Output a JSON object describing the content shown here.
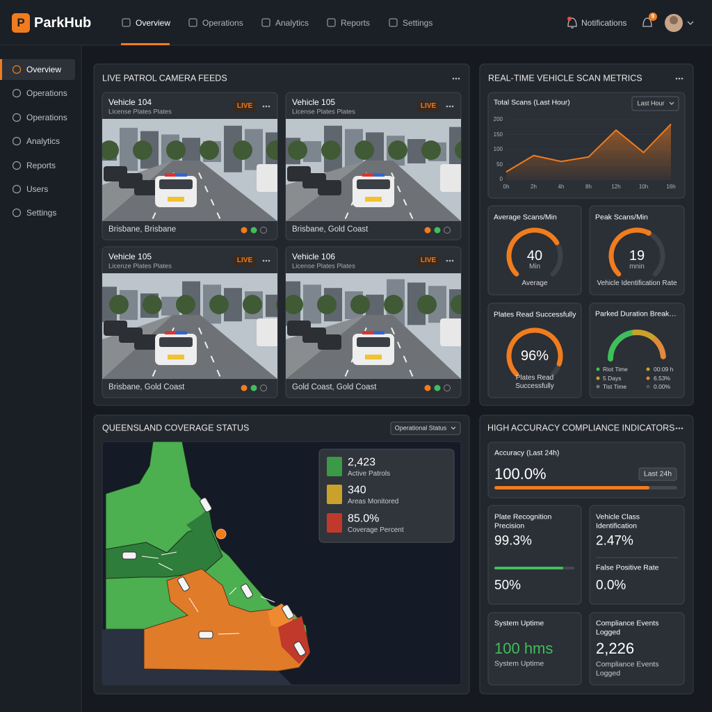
{
  "header": {
    "logo_letter": "P",
    "logo": "ParkHub",
    "nav": [
      "Overview",
      "Operations",
      "Analytics",
      "Reports",
      "Settings"
    ],
    "notifications": "Notifications",
    "badge": "9"
  },
  "sidebar": [
    "Overview",
    "Operations",
    "Operations",
    "Analytics",
    "Reports",
    "Users",
    "Settings"
  ],
  "camera_panel": {
    "title": "LIVE PATROL CAMERA FEEDS",
    "feeds": [
      {
        "vehicle": "Vehicle 104",
        "subtitle": "License Plates Plates",
        "status": "LIVE",
        "location": "Brisbane, Brisbane"
      },
      {
        "vehicle": "Vehicle 105",
        "subtitle": "License Plates Plates",
        "status": "LIVE",
        "location": "Brisbane, Gold Coast"
      },
      {
        "vehicle": "Vehicle 105",
        "subtitle": "Licenze Plates Plates",
        "status": "LIVE",
        "location": "Brisbane, Gold Coast"
      },
      {
        "vehicle": "Vehicle 106",
        "subtitle": "License Plates Plates",
        "status": "LIVE",
        "location": "Gold Coast, Gold Coast"
      }
    ]
  },
  "metrics_panel": {
    "title": "REAL-TIME VEHICLE SCAN METRICS",
    "gauges": [
      {
        "title": "Average Scans/Min",
        "value": "40",
        "unit": "Min",
        "caption": "Average"
      },
      {
        "title": "Peak Scans/Min",
        "value": "19",
        "unit": "mnin",
        "caption": "Vehicle Identification Rate"
      },
      {
        "title": "Plates Read Successfully",
        "value": "96%",
        "caption": "Plates Read Successfully"
      }
    ],
    "duration": {
      "title": "Parked Duration Breakdown",
      "legend": [
        {
          "label": "Riot Time",
          "value": "00:09 h"
        },
        {
          "label": "5 Days",
          "value": "6.53%"
        },
        {
          "label": "Tist Time",
          "value": "0.00%"
        },
        {
          "label": "",
          "value": ""
        }
      ]
    }
  },
  "chart_data": {
    "type": "line",
    "title": "Total Scans (Last Hour)",
    "filter": "Last Hour",
    "categories": [
      "0h",
      "2h",
      "4h",
      "8h",
      "12h",
      "10h",
      "16h"
    ],
    "values": [
      25,
      80,
      60,
      75,
      165,
      90,
      185
    ],
    "color": "#f07c1e",
    "ylim": [
      0,
      200
    ],
    "yticks": [
      0,
      50,
      100,
      150,
      200
    ],
    "grid": true
  },
  "map_panel": {
    "title": "QUEENSLAND COVERAGE STATUS",
    "filter": "Operational Status",
    "stats": [
      {
        "value": "2,423",
        "label": "Active Patrols"
      },
      {
        "value": "340",
        "label": "Areas Monitored"
      },
      {
        "value": "85.0%",
        "label": "Coverage Percent"
      }
    ]
  },
  "compliance_panel": {
    "title": "HIGH ACCURACY COMPLIANCE INDICATORS",
    "accuracy": {
      "title": "Accuracy (Last 24h)",
      "value": "100.0%",
      "filter": "Last 24h"
    },
    "precision": {
      "title": "Plate Recognition Precision",
      "value": "99.3%",
      "sub_value": "50%"
    },
    "vehicle_class": {
      "title": "Vehicle Class Identification",
      "value": "2.47%",
      "sub_title": "False Positive Rate",
      "sub_value": "0.0%"
    },
    "uptime": {
      "title": "System Uptime",
      "value": "100 hms",
      "caption": "System Uptime"
    },
    "events": {
      "title": "Compliance Events Logged",
      "value": "2,226",
      "caption": "Compliance Events Logged"
    }
  }
}
